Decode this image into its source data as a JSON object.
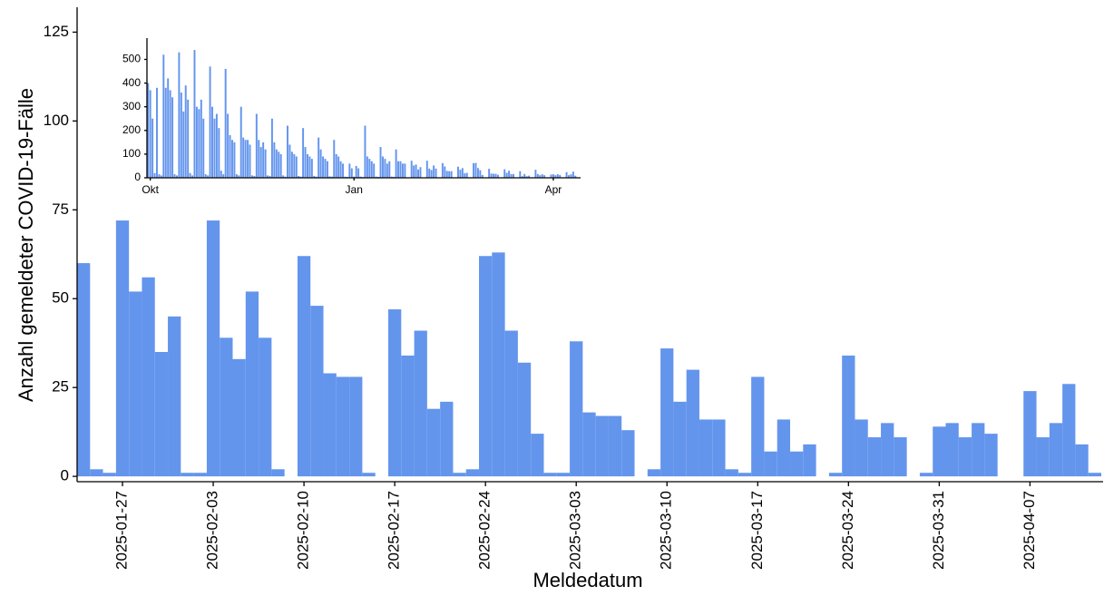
{
  "chart_data": [
    {
      "type": "bar",
      "x_label": "Meldedatum",
      "y_label": "Anzahl gemeldeter COVID-19-Fälle",
      "color": "#6495ED",
      "x": [
        "2025-01-24",
        "2025-01-25",
        "2025-01-26",
        "2025-01-27",
        "2025-01-28",
        "2025-01-29",
        "2025-01-30",
        "2025-01-31",
        "2025-02-01",
        "2025-02-02",
        "2025-02-03",
        "2025-02-04",
        "2025-02-05",
        "2025-02-06",
        "2025-02-07",
        "2025-02-08",
        "2025-02-09",
        "2025-02-10",
        "2025-02-11",
        "2025-02-12",
        "2025-02-13",
        "2025-02-14",
        "2025-02-15",
        "2025-02-16",
        "2025-02-17",
        "2025-02-18",
        "2025-02-19",
        "2025-02-20",
        "2025-02-21",
        "2025-02-22",
        "2025-02-23",
        "2025-02-24",
        "2025-02-25",
        "2025-02-26",
        "2025-02-27",
        "2025-02-28",
        "2025-03-01",
        "2025-03-02",
        "2025-03-03",
        "2025-03-04",
        "2025-03-05",
        "2025-03-06",
        "2025-03-07",
        "2025-03-08",
        "2025-03-09",
        "2025-03-10",
        "2025-03-11",
        "2025-03-12",
        "2025-03-13",
        "2025-03-14",
        "2025-03-15",
        "2025-03-16",
        "2025-03-17",
        "2025-03-18",
        "2025-03-19",
        "2025-03-20",
        "2025-03-21",
        "2025-03-22",
        "2025-03-23",
        "2025-03-24",
        "2025-03-25",
        "2025-03-26",
        "2025-03-27",
        "2025-03-28",
        "2025-03-29",
        "2025-03-30",
        "2025-03-31",
        "2025-04-01",
        "2025-04-02",
        "2025-04-03",
        "2025-04-04",
        "2025-04-05",
        "2025-04-06",
        "2025-04-07",
        "2025-04-08",
        "2025-04-09",
        "2025-04-10",
        "2025-04-11",
        "2025-04-12"
      ],
      "values": [
        60,
        2,
        1,
        72,
        52,
        56,
        35,
        45,
        1,
        1,
        72,
        39,
        33,
        52,
        39,
        2,
        0,
        62,
        48,
        29,
        28,
        28,
        1,
        0,
        47,
        34,
        41,
        19,
        21,
        1,
        2,
        62,
        63,
        41,
        32,
        12,
        1,
        1,
        38,
        18,
        17,
        17,
        13,
        0,
        2,
        36,
        21,
        30,
        16,
        16,
        2,
        1,
        28,
        7,
        16,
        7,
        9,
        0,
        1,
        34,
        16,
        11,
        15,
        11,
        0,
        1,
        14,
        15,
        11,
        15,
        12,
        0,
        0,
        24,
        11,
        15,
        26,
        9,
        1
      ],
      "ylim": [
        -1.5,
        132
      ],
      "yticks": [
        0,
        25,
        50,
        75,
        100,
        125
      ],
      "xticks": [
        "2025-01-27",
        "2025-02-03",
        "2025-02-10",
        "2025-02-17",
        "2025-02-24",
        "2025-03-03",
        "2025-03-10",
        "2025-03-17",
        "2025-03-24",
        "2025-03-31",
        "2025-04-07"
      ]
    },
    {
      "type": "bar",
      "color": "#6495ED",
      "categories": [
        null,
        "Okt",
        null,
        null,
        null,
        null,
        null,
        null,
        null,
        null,
        null,
        null,
        null,
        null,
        null,
        null,
        null,
        null,
        null,
        null,
        null,
        null,
        null,
        null,
        null,
        null,
        null,
        null,
        null,
        null,
        null,
        null,
        null,
        null,
        null,
        null,
        null,
        null,
        null,
        null,
        null,
        null,
        null,
        null,
        null,
        null,
        null,
        null,
        null,
        null,
        null,
        null,
        null,
        null,
        null,
        null,
        null,
        null,
        null,
        null,
        null,
        null,
        null,
        null,
        null,
        null,
        null,
        null,
        null,
        null,
        null,
        null,
        null,
        null,
        null,
        null,
        null,
        null,
        null,
        null,
        null,
        null,
        null,
        null,
        null,
        null,
        null,
        null,
        null,
        null,
        null,
        null,
        null,
        "Jan",
        null,
        null,
        null,
        null,
        null,
        null,
        null,
        null,
        null,
        null,
        null,
        null,
        null,
        null,
        null,
        null,
        null,
        null,
        null,
        null,
        null,
        null,
        null,
        null,
        null,
        null,
        null,
        null,
        null,
        null,
        null,
        null,
        null,
        null,
        null,
        null,
        null,
        null,
        null,
        null,
        null,
        null,
        null,
        null,
        null,
        null,
        null,
        null,
        null,
        null,
        null,
        null,
        null,
        null,
        null,
        null,
        null,
        null,
        null,
        null,
        null,
        null,
        null,
        null,
        null,
        null,
        null,
        null,
        null,
        null,
        null,
        null,
        null,
        null,
        null,
        null,
        null,
        null,
        null,
        null,
        null,
        null,
        null,
        null,
        null,
        null,
        null,
        null,
        null,
        "Apr",
        null,
        null,
        null,
        null,
        null,
        null,
        null,
        null,
        null,
        null,
        null
      ],
      "values": [
        400,
        370,
        250,
        20,
        380,
        15,
        10,
        520,
        380,
        420,
        370,
        340,
        15,
        10,
        530,
        360,
        280,
        390,
        330,
        20,
        10,
        540,
        300,
        290,
        330,
        250,
        15,
        10,
        470,
        300,
        250,
        270,
        210,
        30,
        15,
        460,
        270,
        180,
        160,
        150,
        15,
        10,
        300,
        170,
        160,
        160,
        140,
        10,
        8,
        270,
        160,
        130,
        150,
        120,
        10,
        8,
        250,
        150,
        120,
        110,
        100,
        10,
        5,
        220,
        140,
        110,
        100,
        90,
        8,
        5,
        210,
        130,
        100,
        90,
        80,
        8,
        5,
        170,
        120,
        90,
        80,
        70,
        6,
        5,
        160,
        100,
        90,
        70,
        60,
        5,
        4,
        60,
        40,
        5,
        50,
        40,
        5,
        3,
        220,
        90,
        80,
        70,
        60,
        5,
        4,
        130,
        90,
        80,
        60,
        70,
        5,
        4,
        120,
        70,
        70,
        60,
        60,
        2,
        1,
        72,
        52,
        56,
        35,
        45,
        1,
        1,
        72,
        39,
        33,
        52,
        39,
        2,
        0,
        62,
        48,
        29,
        28,
        28,
        1,
        0,
        47,
        34,
        41,
        19,
        21,
        1,
        2,
        62,
        63,
        41,
        32,
        12,
        1,
        1,
        38,
        18,
        17,
        17,
        13,
        0,
        2,
        36,
        21,
        30,
        16,
        16,
        2,
        1,
        28,
        7,
        16,
        7,
        9,
        0,
        1,
        34,
        16,
        11,
        15,
        11,
        0,
        1,
        14,
        15,
        11,
        15,
        12,
        0,
        0,
        24,
        11,
        15,
        26,
        9,
        1
      ],
      "ylim": [
        0,
        590
      ],
      "yticks": [
        0,
        100,
        200,
        300,
        400,
        500
      ]
    }
  ]
}
